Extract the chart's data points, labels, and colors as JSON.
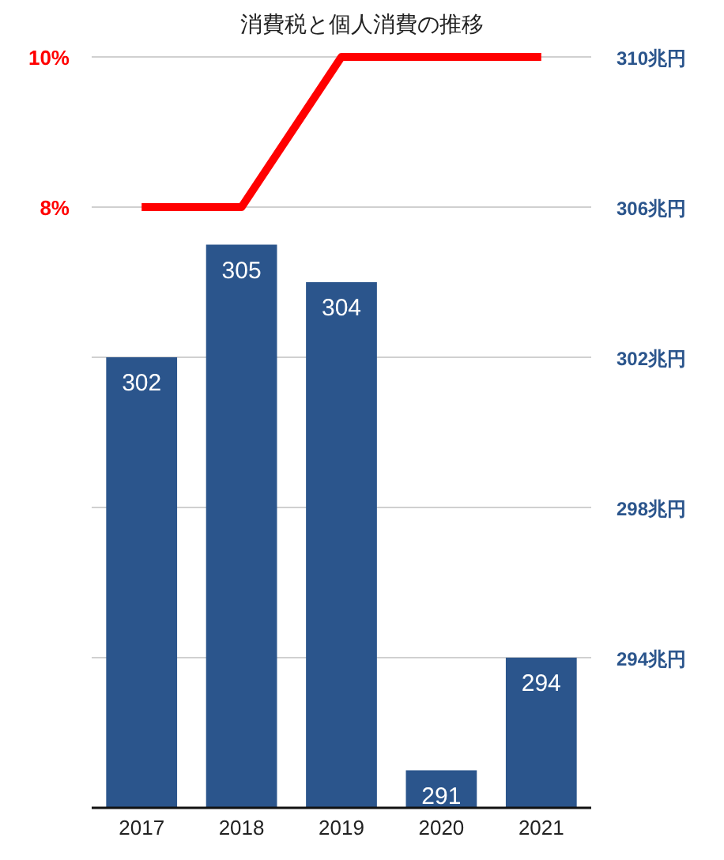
{
  "chart_data": {
    "type": "bar",
    "title": "消費税と個人消費の推移",
    "categories": [
      "2017",
      "2018",
      "2019",
      "2020",
      "2021"
    ],
    "series": [
      {
        "type": "line",
        "color": "#ff0000",
        "values": [
          8,
          8,
          10,
          10,
          10
        ]
      },
      {
        "axis": "y2",
        "color": "#2b558c",
        "values": [
          302,
          305,
          304,
          291,
          294
        ],
        "value_labels": [
          "302",
          "305",
          "304",
          "291",
          "294"
        ]
      }
    ],
    "ylim": [
      0,
      10
    ],
    "yticks": [
      {
        "value": 8,
        "label": "8%"
      },
      {
        "value": 10,
        "label": "10%"
      }
    ],
    "y2lim": [
      290,
      310
    ],
    "y2ticks": [
      {
        "value": 294,
        "label": "294兆円"
      },
      {
        "value": 298,
        "label": "298兆円"
      },
      {
        "value": 302,
        "label": "302兆円"
      },
      {
        "value": 306,
        "label": "306兆円"
      },
      {
        "value": 310,
        "label": "310兆円"
      }
    ],
    "grid": true
  }
}
